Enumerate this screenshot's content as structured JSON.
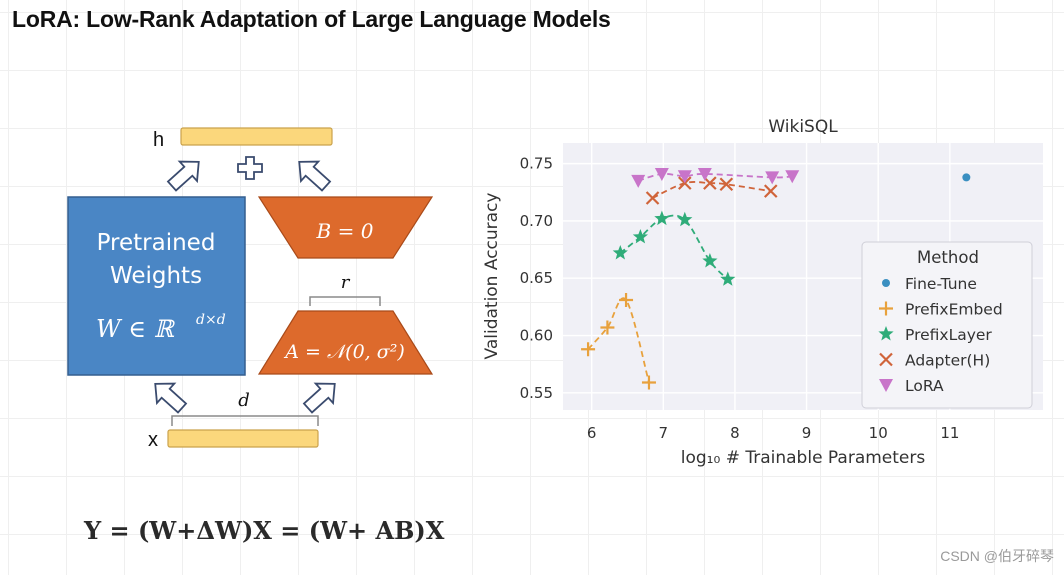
{
  "headline": "LoRA: Low-Rank Adaptation of Large Language Models",
  "diagram": {
    "h_label": "h",
    "x_label": "x",
    "pretrained_line1": "Pretrained",
    "pretrained_line2": "Weights",
    "pretrained_formula": "W ∈ ℝ",
    "pretrained_formula_sup": "d×d",
    "b_label": "B = 0",
    "a_label": "A = 𝒩(0, σ²)",
    "r_label": "r",
    "d_label": "d",
    "colors": {
      "pretrained": "#4a86c5",
      "lora_block": "#dd6a2c",
      "bar_fill": "#fbd77c",
      "arrow": "#3a4b6e"
    }
  },
  "equation": "Y = (W+ΔW)X = (W+ AB)X",
  "watermark": "CSDN @伯牙碎琴",
  "chart_data": {
    "type": "scatter",
    "title": "WikiSQL",
    "xlabel": "log₁₀ # Trainable Parameters",
    "ylabel": "Validation Accuracy",
    "xlim": [
      5.6,
      12.3
    ],
    "ylim": [
      0.535,
      0.768
    ],
    "xticks": [
      6,
      7,
      8,
      9,
      10,
      11
    ],
    "yticks": [
      0.55,
      0.6,
      0.65,
      0.7,
      0.75
    ],
    "ytick_labels": [
      "0.55",
      "0.60",
      "0.65",
      "0.70",
      "0.75"
    ],
    "grid": true,
    "legend_title": "Method",
    "legend_position": "center-right",
    "series": [
      {
        "name": "Fine-Tune",
        "marker": "circle",
        "color": "#3a8fc1",
        "dashed_fit": false,
        "x": [
          11.23
        ],
        "y": [
          0.738
        ]
      },
      {
        "name": "PrefixEmbed",
        "marker": "plus",
        "color": "#e8a13c",
        "dashed_fit": true,
        "x": [
          5.95,
          6.22,
          6.48,
          6.8
        ],
        "y": [
          0.588,
          0.607,
          0.631,
          0.559
        ]
      },
      {
        "name": "PrefixLayer",
        "marker": "star",
        "color": "#2fac79",
        "dashed_fit": true,
        "x": [
          6.4,
          6.68,
          6.98,
          7.3,
          7.65,
          7.9
        ],
        "y": [
          0.672,
          0.686,
          0.702,
          0.701,
          0.665,
          0.649
        ]
      },
      {
        "name": "Adapter(H)",
        "marker": "x",
        "color": "#d0643a",
        "dashed_fit": true,
        "x": [
          6.85,
          7.3,
          7.65,
          7.88,
          8.5
        ],
        "y": [
          0.72,
          0.733,
          0.733,
          0.732,
          0.726
        ]
      },
      {
        "name": "LoRA",
        "marker": "triangle-down",
        "color": "#c874c9",
        "dashed_fit": true,
        "x": [
          6.65,
          6.98,
          7.3,
          7.58,
          8.52,
          8.8
        ],
        "y": [
          0.735,
          0.741,
          0.739,
          0.741,
          0.738,
          0.739
        ]
      }
    ]
  }
}
